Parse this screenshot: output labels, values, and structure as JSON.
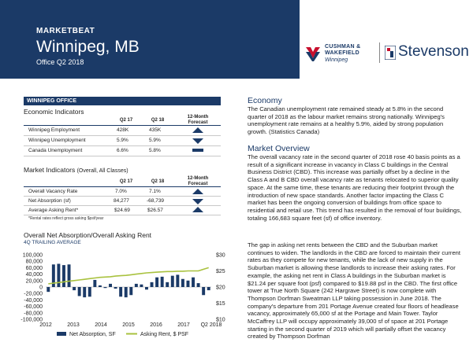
{
  "header": {
    "kicker": "MARKETBEAT",
    "title": "Winnipeg, MB",
    "subtitle": "Office Q2 2018"
  },
  "logos": {
    "cw_line1": "CUSHMAN &",
    "cw_line2": "WAKEFIELD",
    "cw_city": "Winnipeg",
    "stevenson": "Stevenson"
  },
  "section_bar": "WINNIPEG OFFICE",
  "economic_indicators": {
    "title": "Economic Indicators",
    "col_q17": "Q2 17",
    "col_q18": "Q2 18",
    "col_forecast": "12-Month Forecast",
    "rows": [
      {
        "label": "Winnipeg Employment",
        "q17": "428K",
        "q18": "435K",
        "forecast": "up"
      },
      {
        "label": "Winnipeg Unemployment",
        "q17": "5.9%",
        "q18": "5.9%",
        "forecast": "down"
      },
      {
        "label": "Canada Unemployment",
        "q17": "6.6%",
        "q18": "5.8%",
        "forecast": "flat"
      }
    ]
  },
  "market_indicators": {
    "title": "Market Indicators",
    "title_suffix": "(Overall, All Classes)",
    "col_q17": "Q2 17",
    "col_q18": "Q2 18",
    "col_forecast": "12-Month Forecast",
    "rows": [
      {
        "label": "Overall Vacancy Rate",
        "q17": "7.0%",
        "q18": "7.1%",
        "forecast": "up"
      },
      {
        "label": "Net Absorption (sf)",
        "q17": "84,277",
        "q18": "-68,739",
        "forecast": "down"
      },
      {
        "label": "Average Asking Rent*",
        "q17": "$24.69",
        "q18": "$26.57",
        "forecast": "up"
      }
    ],
    "footnote": "*Rental rates reflect gross asking $psf/year"
  },
  "chart_title": "Overall Net Absorption/Overall Asking Rent",
  "chart_subtitle": "4Q TRAILING AVERAGE",
  "chart_data": {
    "type": "bar",
    "x_ticks": [
      "2012",
      "2013",
      "2014",
      "2015",
      "2016",
      "2017",
      "Q2 2018"
    ],
    "y_left": {
      "ticks": [
        "100,000",
        "80,000",
        "60,000",
        "40,000",
        "20,000",
        "0",
        "-20,000",
        "-40,000",
        "-60,000",
        "-80,000",
        "-100,000"
      ],
      "range": [
        -100000,
        100000
      ]
    },
    "y_right": {
      "ticks": [
        "$30",
        "$25",
        "$20",
        "$15",
        "$10"
      ],
      "range": [
        10,
        30
      ]
    },
    "series": [
      {
        "name": "Net Absorption, SF",
        "kind": "bar",
        "color": "#1b3a67",
        "values": [
          -15000,
          70000,
          72000,
          68000,
          70000,
          -10000,
          -28000,
          -32000,
          -30000,
          22000,
          5000,
          -3000,
          10000,
          -5000,
          -30000,
          -32000,
          -25000,
          10000,
          8000,
          -8000,
          15000,
          30000,
          32000,
          15000,
          35000,
          38000,
          25000,
          20000,
          30000,
          12000,
          -25000,
          -10000
        ]
      },
      {
        "name": "Asking Rent, $ PSF",
        "kind": "line",
        "color": "#a9c23f",
        "values": [
          21.0,
          21.2,
          21.4,
          21.6,
          21.8,
          22.0,
          22.2,
          22.4,
          22.6,
          22.8,
          23.0,
          23.1,
          23.2,
          23.4,
          23.5,
          23.6,
          23.8,
          24.0,
          24.2,
          24.4,
          24.5,
          24.6,
          24.7,
          24.8,
          24.8,
          24.9,
          24.9,
          25.0,
          25.0,
          25.0,
          25.5,
          26.0
        ]
      }
    ]
  },
  "economy": {
    "heading": "Economy",
    "text": "The Canadian unemployment rate remained steady at 5.8% in the second quarter of 2018 as the labour market remains strong nationally. Winnipeg's unemployment rate remains at a healthy 5.9%, aided by strong population growth. (Statistics Canada)"
  },
  "market_overview": {
    "heading": "Market Overview",
    "para1": "The overall vacancy rate in the second quarter of 2018 rose 40 basis points as a result of a significant increase in vacancy in Class C buildings in the Central Business District (CBD). This increase was partially offset by a decline in the Class A and B CBD overall vacancy rate as tenants relocated to superior quality space. At the same time, these tenants are reducing their footprint through the introduction of new space standards.  Another factor impacting the Class C market has been the ongoing conversion of buildings from office space to residential and retail use. This trend has resulted in the removal of four buildings, totaling 166,683 square feet (sf) of office inventory.",
    "para2": "The gap in asking net rents between the CBD and the Suburban market continues to widen. The landlords in the CBD are forced to maintain their current rates as they compete for new tenants, while the lack of new supply in the Suburban market is allowing these landlords to increase their asking rates.  For example, the asking net rent in Class A buildings in the Suburban market is $21.24 per square foot (psf) compared to $19.88 psf in the CBD.  The first office tower at True North Square (242 Hargrave Street) is now complete with Thompson Dorfman Sweatman LLP taking possession in June 2018. The company's departure from 201 Portage Avenue created four floors of headlease vacancy, approximately 65,000 sf at the Portage and Main Tower.  Taylor McCaffrey LLP will occupy approximately 39,000 sf of space at 201 Portage starting in the second quarter of 2019 which will partially offset the vacancy created by Thompson Dorfman"
  }
}
